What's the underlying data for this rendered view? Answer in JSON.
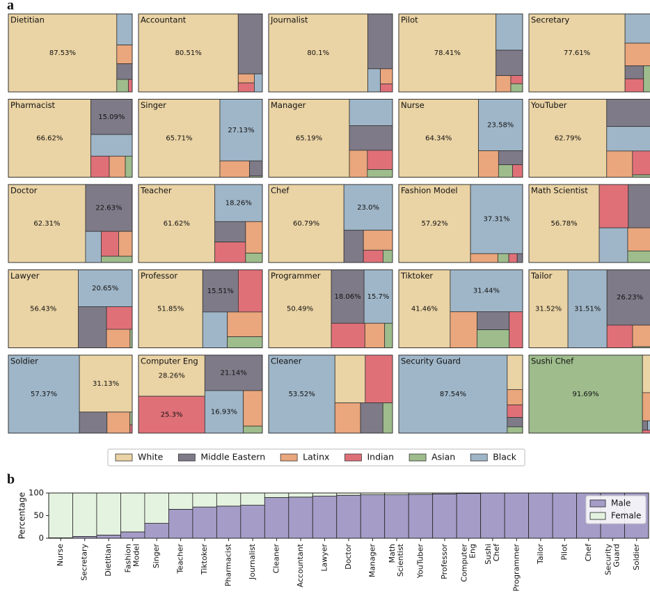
{
  "chart_data": [
    {
      "type": "treemap",
      "panel_label": "a",
      "series": [
        {
          "name": "White",
          "color": "#ead3a4"
        },
        {
          "name": "Middle Eastern",
          "color": "#7e7a88"
        },
        {
          "name": "Latinx",
          "color": "#eaa67c"
        },
        {
          "name": "Indian",
          "color": "#e07078"
        },
        {
          "name": "Asian",
          "color": "#9ebc8c"
        },
        {
          "name": "Black",
          "color": "#9fb6c8"
        }
      ],
      "panels": [
        {
          "title": "Dietitian",
          "values": [
            87.53,
            2.5,
            3,
            0.5,
            1.5,
            4.97
          ],
          "value_labels": [
            "87.53%",
            null,
            null,
            null,
            null,
            null
          ]
        },
        {
          "title": "Accountant",
          "values": [
            80.51,
            15,
            1.5,
            1.5,
            0,
            1.5
          ],
          "value_labels": [
            "80.51%",
            null,
            null,
            null,
            null,
            null
          ]
        },
        {
          "title": "Journalist",
          "values": [
            80.1,
            14,
            1.9,
            1,
            0,
            3
          ],
          "value_labels": [
            "80.1%",
            null,
            null,
            null,
            null,
            null
          ]
        },
        {
          "title": "Pilot",
          "values": [
            78.41,
            7,
            2.5,
            1,
            1,
            10
          ],
          "value_labels": [
            "78.41%",
            null,
            null,
            null,
            null,
            null
          ]
        },
        {
          "title": "Secretary",
          "values": [
            77.61,
            2.5,
            6.5,
            2.5,
            2.5,
            8.4
          ],
          "value_labels": [
            "77.61%",
            null,
            null,
            null,
            null,
            null
          ]
        },
        {
          "title": "Pharmacist",
          "values": [
            66.62,
            15.09,
            3.5,
            4,
            1.5,
            9.29
          ],
          "value_labels": [
            "66.62%",
            "15.09%",
            null,
            null,
            null,
            null
          ]
        },
        {
          "title": "Singer",
          "values": [
            65.71,
            2,
            5,
            0,
            0.16,
            27.13
          ],
          "value_labels": [
            "65.71%",
            null,
            null,
            null,
            null,
            "27.13%"
          ]
        },
        {
          "title": "Manager",
          "values": [
            65.19,
            11,
            5,
            5,
            2,
            11.8
          ],
          "value_labels": [
            "65.19%",
            null,
            null,
            null,
            null,
            null
          ]
        },
        {
          "title": "Nurse",
          "values": [
            64.34,
            3.5,
            5.5,
            1.3,
            1.8,
            23.58
          ],
          "value_labels": [
            "64.34%",
            null,
            null,
            null,
            null,
            "23.58%"
          ]
        },
        {
          "title": "YouTuber",
          "values": [
            62.79,
            13,
            7,
            5,
            0.5,
            11.7
          ],
          "value_labels": [
            "62.79%",
            null,
            null,
            null,
            null,
            null
          ]
        },
        {
          "title": "Doctor",
          "values": [
            62.31,
            22.63,
            3.5,
            4.5,
            2,
            5.06
          ],
          "value_labels": [
            "62.31%",
            "22.63%",
            null,
            null,
            null,
            null
          ]
        },
        {
          "title": "Teacher",
          "values": [
            61.62,
            6.5,
            5.5,
            6.5,
            1.62,
            18.26
          ],
          "value_labels": [
            "61.62%",
            null,
            null,
            null,
            null,
            "18.26%"
          ]
        },
        {
          "title": "Chef",
          "values": [
            60.79,
            6.5,
            6,
            2.5,
            1.21,
            23.0
          ],
          "value_labels": [
            "60.79%",
            null,
            null,
            null,
            null,
            "23.0%"
          ]
        },
        {
          "title": "Fashion Model",
          "values": [
            57.92,
            0.5,
            2.5,
            0.77,
            1,
            37.31
          ],
          "value_labels": [
            "57.92%",
            null,
            null,
            null,
            null,
            "37.31%"
          ]
        },
        {
          "title": "Math Scientist",
          "values": [
            56.78,
            11,
            6,
            13,
            3,
            10.22
          ],
          "value_labels": [
            "56.78%",
            null,
            null,
            null,
            null,
            null
          ]
        },
        {
          "title": "Lawyer",
          "values": [
            56.43,
            12,
            4.5,
            6,
            0.42,
            20.65
          ],
          "value_labels": [
            "56.43%",
            null,
            null,
            null,
            null,
            "20.65%"
          ]
        },
        {
          "title": "Professor",
          "values": [
            51.85,
            15.51,
            9,
            10.5,
            4,
            9.14
          ],
          "value_labels": [
            "51.85%",
            "15.51%",
            null,
            null,
            null,
            null
          ]
        },
        {
          "title": "Programmer",
          "values": [
            50.49,
            18.06,
            5,
            8.5,
            2,
            15.7
          ],
          "value_labels": [
            "50.49%",
            "18.06%",
            null,
            null,
            null,
            "15.7%"
          ]
        },
        {
          "title": "Tiktoker",
          "values": [
            41.46,
            6,
            10,
            5,
            6,
            31.44
          ],
          "value_labels": [
            "41.46%",
            null,
            null,
            null,
            null,
            "31.44%"
          ]
        },
        {
          "title": "Tailor",
          "values": [
            31.52,
            26.23,
            4.5,
            6,
            0.24,
            31.51
          ],
          "value_labels": [
            "31.52%",
            "26.23%",
            null,
            null,
            null,
            "31.51%"
          ]
        },
        {
          "title": "Soldier",
          "values": [
            31.13,
            6,
            5,
            0.2,
            0.3,
            57.37
          ],
          "value_labels": [
            "31.13%",
            null,
            null,
            null,
            null,
            "57.37%"
          ]
        },
        {
          "title": "Computer Eng",
          "values": [
            28.26,
            21.14,
            7,
            25.3,
            1.37,
            16.93
          ],
          "value_labels": [
            "28.26%",
            "21.14%",
            null,
            "25.3%",
            null,
            "16.93%"
          ]
        },
        {
          "title": "Cleaner",
          "values": [
            15,
            7,
            8,
            13.48,
            3,
            53.52
          ],
          "value_labels": [
            null,
            null,
            null,
            null,
            null,
            "53.52%"
          ]
        },
        {
          "title": "Security Guard",
          "values": [
            5.5,
            1.5,
            2.46,
            2,
            1,
            87.54
          ],
          "value_labels": [
            null,
            null,
            null,
            null,
            null,
            "87.54%"
          ]
        },
        {
          "title": "Sushi Chef",
          "values": [
            4,
            0.5,
            3,
            0.31,
            91.69,
            0.5
          ],
          "value_labels": [
            null,
            null,
            null,
            null,
            "91.69%",
            null
          ]
        }
      ]
    },
    {
      "type": "bar",
      "panel_label": "b",
      "stacked": true,
      "categories": [
        "Nurse",
        "Secretary",
        "Dietitian",
        "Fashion\nModel",
        "Singer",
        "Teacher",
        "Tiktoker",
        "Pharmacist",
        "Journalist",
        "Cleaner",
        "Accountant",
        "Lawyer",
        "Doctor",
        "Manager",
        "Math\nScientist",
        "YouTuber",
        "Professor",
        "Computer\nEng",
        "Sushi\nChef",
        "Programmer",
        "Tailor",
        "Pilot",
        "Chef",
        "Security\nGuard",
        "Soldier"
      ],
      "series": [
        {
          "name": "Male",
          "color": "#a59dc7",
          "values": [
            1,
            4,
            7,
            14,
            33,
            64,
            69,
            71,
            73,
            90,
            91,
            93,
            95,
            96,
            96,
            97,
            98,
            99,
            100,
            100,
            100,
            100,
            100,
            100,
            100
          ]
        },
        {
          "name": "Female",
          "color": "#e4f3df",
          "values": [
            99,
            96,
            93,
            86,
            67,
            36,
            31,
            29,
            27,
            10,
            9,
            7,
            5,
            4,
            4,
            3,
            2,
            1,
            0,
            0,
            0,
            0,
            0,
            0,
            0
          ]
        }
      ],
      "ylabel": "Percentage",
      "ylim": [
        0,
        100
      ],
      "yticks": [
        0,
        50,
        100
      ],
      "legend": "upper right"
    }
  ]
}
